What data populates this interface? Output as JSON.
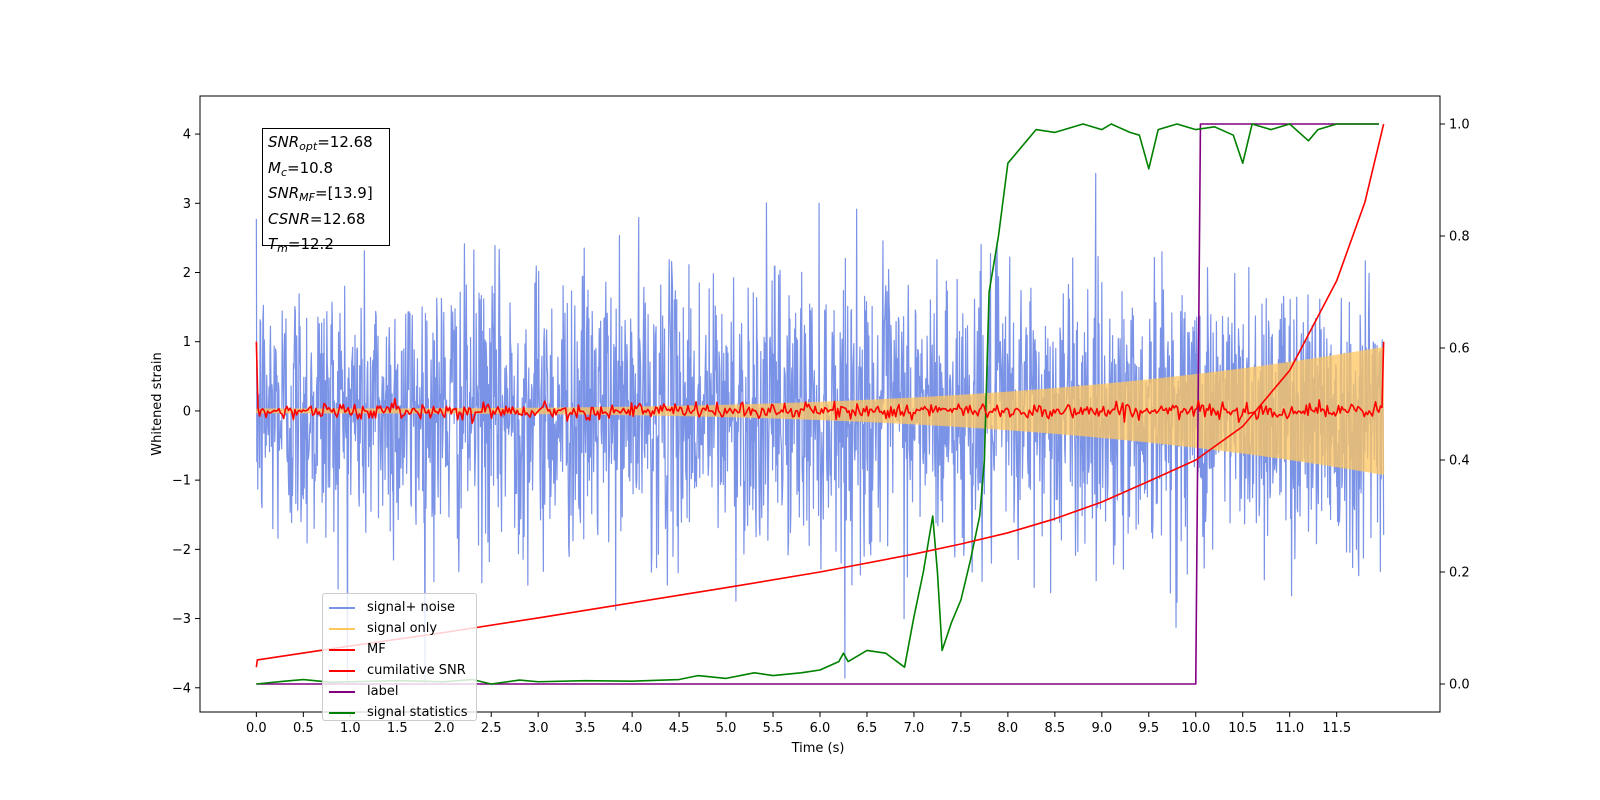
{
  "chart_data": {
    "type": "line",
    "xlabel": "Time (s)",
    "ylabel": "Whitened strain",
    "xlim": [
      -0.6,
      12.6
    ],
    "ylim": [
      -4.35,
      4.55
    ],
    "y2lim": [
      -0.05,
      1.05
    ],
    "x_ticks": [
      "0.0",
      "0.5",
      "1.0",
      "1.5",
      "2.0",
      "2.5",
      "3.0",
      "3.5",
      "4.0",
      "4.5",
      "5.0",
      "5.5",
      "6.0",
      "6.5",
      "7.0",
      "7.5",
      "8.0",
      "8.5",
      "9.0",
      "9.5",
      "10.0",
      "10.5",
      "11.0",
      "11.5"
    ],
    "y_ticks": [
      "4",
      "3",
      "2",
      "1",
      "0",
      "−1",
      "−2",
      "−3",
      "−4"
    ],
    "y2_ticks": [
      "1.0",
      "0.8",
      "0.6",
      "0.4",
      "0.2",
      "0.0"
    ],
    "grid": false,
    "legend_position": "lower-left",
    "annotation": {
      "lines": [
        {
          "symbol": "SNR",
          "sub": "opt",
          "value": "=12.68"
        },
        {
          "symbol": "M",
          "sub": "c",
          "value": "=10.8"
        },
        {
          "symbol": "SNR",
          "sub": "MF",
          "value": "=[13.9]"
        },
        {
          "symbol": "CSNR",
          "sub": "",
          "value": "=12.68"
        },
        {
          "symbol": "T",
          "sub": "m",
          "value": "=12.2"
        }
      ]
    },
    "series": [
      {
        "name": "signal+ noise",
        "color": "#7b93e6",
        "axis": "left",
        "kind": "noise",
        "x_range": [
          0.0,
          12.0
        ],
        "std": 1.0,
        "note_peak_values": [
          3.9,
          3.8,
          3.7,
          3.6,
          -3.8,
          -3.9
        ]
      },
      {
        "name": "signal only",
        "color": "#ffc65e",
        "axis": "left",
        "kind": "chirp",
        "x_range": [
          0.0,
          12.0
        ],
        "amplitude_start": 0.03,
        "amplitude_end": 0.92
      },
      {
        "name": "MF",
        "color": "#ff0000",
        "axis": "left",
        "kind": "mf",
        "x_range": [
          0.0,
          12.0
        ],
        "start_value": 1.0,
        "baseline": 0.0,
        "end_value": 1.0
      },
      {
        "name": "cumilative SNR",
        "color": "#ff0000",
        "axis": "right",
        "x": [
          0.0,
          0.01,
          1.0,
          2.0,
          3.0,
          4.0,
          5.0,
          6.0,
          7.0,
          7.5,
          8.0,
          8.5,
          9.0,
          9.5,
          10.0,
          10.5,
          11.0,
          11.5,
          11.8,
          12.0
        ],
        "y": [
          0.03,
          0.043,
          0.068,
          0.092,
          0.118,
          0.145,
          0.172,
          0.2,
          0.232,
          0.25,
          0.27,
          0.295,
          0.325,
          0.362,
          0.4,
          0.46,
          0.56,
          0.72,
          0.86,
          1.0
        ]
      },
      {
        "name": "label",
        "color": "#800080",
        "axis": "right",
        "x": [
          0.0,
          10.0,
          10.05,
          11.95
        ],
        "y": [
          0.0,
          0.0,
          1.0,
          1.0
        ]
      },
      {
        "name": "signal statistics",
        "color": "#008000",
        "axis": "right",
        "x": [
          0.0,
          0.3,
          0.5,
          0.8,
          1.0,
          1.5,
          2.0,
          2.3,
          2.5,
          2.8,
          3.0,
          3.5,
          4.0,
          4.5,
          4.7,
          5.0,
          5.3,
          5.5,
          5.8,
          6.0,
          6.2,
          6.25,
          6.3,
          6.5,
          6.7,
          6.9,
          7.0,
          7.1,
          7.2,
          7.25,
          7.3,
          7.4,
          7.5,
          7.6,
          7.7,
          7.75,
          7.8,
          7.9,
          8.0,
          8.1,
          8.2,
          8.3,
          8.5,
          8.6,
          8.8,
          9.0,
          9.1,
          9.3,
          9.4,
          9.5,
          9.6,
          9.8,
          10.0,
          10.2,
          10.4,
          10.5,
          10.6,
          10.8,
          11.0,
          11.2,
          11.3,
          11.5,
          11.8,
          11.95
        ],
        "y": [
          0.0,
          0.005,
          0.008,
          0.003,
          0.004,
          0.006,
          0.004,
          0.008,
          0.0,
          0.007,
          0.004,
          0.006,
          0.005,
          0.008,
          0.015,
          0.01,
          0.02,
          0.015,
          0.02,
          0.025,
          0.04,
          0.055,
          0.04,
          0.06,
          0.055,
          0.03,
          0.12,
          0.2,
          0.3,
          0.2,
          0.06,
          0.11,
          0.15,
          0.22,
          0.3,
          0.4,
          0.7,
          0.8,
          0.93,
          0.95,
          0.97,
          0.99,
          0.985,
          0.99,
          1.0,
          0.99,
          1.0,
          0.985,
          0.98,
          0.92,
          0.99,
          1.0,
          0.99,
          0.995,
          0.98,
          0.93,
          1.0,
          0.99,
          1.0,
          0.97,
          0.99,
          1.0,
          1.0,
          1.0
        ]
      }
    ]
  }
}
